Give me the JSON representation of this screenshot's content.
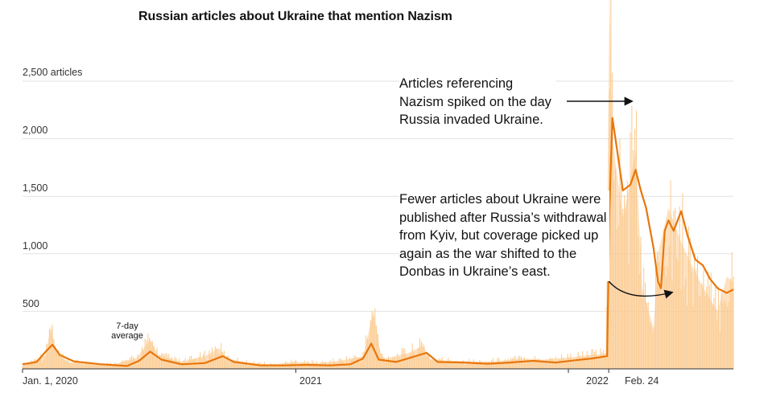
{
  "chart_data": {
    "type": "area",
    "title": "Russian articles about Ukraine that mention Nazism",
    "ylabel": "",
    "xlabel": "",
    "ylim": [
      0,
      3200
    ],
    "yticks": [
      {
        "value": 500,
        "label": "500"
      },
      {
        "value": 1000,
        "label": "1,000"
      },
      {
        "value": 1500,
        "label": "1,500"
      },
      {
        "value": 2000,
        "label": "2,000"
      },
      {
        "value": 2500,
        "label": "2,500 articles"
      }
    ],
    "xrange": [
      "2020-01-01",
      "2022-08-10"
    ],
    "xticks": [
      {
        "date": "2020-01-01",
        "label": "Jan. 1, 2020"
      },
      {
        "date": "2021-01-01",
        "label": "2021"
      },
      {
        "date": "2022-01-01",
        "label": "2022"
      },
      {
        "date": "2022-02-24",
        "label": "Feb. 24"
      }
    ],
    "series": [
      {
        "kind": "daily",
        "color": "#fbc98c",
        "points": [
          [
            "2020-01-01",
            40
          ],
          [
            "2020-01-15",
            70
          ],
          [
            "2020-02-01",
            120
          ],
          [
            "2020-02-08",
            380
          ],
          [
            "2020-02-15",
            140
          ],
          [
            "2020-03-01",
            60
          ],
          [
            "2020-04-01",
            50
          ],
          [
            "2020-05-01",
            40
          ],
          [
            "2020-06-01",
            90
          ],
          [
            "2020-06-20",
            250
          ],
          [
            "2020-07-01",
            120
          ],
          [
            "2020-08-01",
            60
          ],
          [
            "2020-09-01",
            110
          ],
          [
            "2020-09-20",
            180
          ],
          [
            "2020-10-01",
            90
          ],
          [
            "2020-11-01",
            50
          ],
          [
            "2020-12-01",
            40
          ],
          [
            "2021-01-01",
            60
          ],
          [
            "2021-02-01",
            50
          ],
          [
            "2021-03-01",
            70
          ],
          [
            "2021-04-01",
            110
          ],
          [
            "2021-04-15",
            500
          ],
          [
            "2021-04-25",
            120
          ],
          [
            "2021-05-01",
            90
          ],
          [
            "2021-06-01",
            140
          ],
          [
            "2021-06-20",
            200
          ],
          [
            "2021-07-01",
            80
          ],
          [
            "2021-08-01",
            70
          ],
          [
            "2021-09-01",
            60
          ],
          [
            "2021-10-01",
            70
          ],
          [
            "2021-11-01",
            90
          ],
          [
            "2021-12-01",
            80
          ],
          [
            "2022-01-01",
            100
          ],
          [
            "2022-02-01",
            120
          ],
          [
            "2022-02-20",
            130
          ],
          [
            "2022-02-24",
            2500
          ],
          [
            "2022-02-25",
            3300
          ],
          [
            "2022-03-01",
            2000
          ],
          [
            "2022-03-15",
            1300
          ],
          [
            "2022-04-01",
            1900
          ],
          [
            "2022-04-10",
            700
          ],
          [
            "2022-04-25",
            350
          ],
          [
            "2022-05-01",
            1000
          ],
          [
            "2022-05-15",
            1400
          ],
          [
            "2022-06-01",
            1100
          ],
          [
            "2022-06-15",
            900
          ],
          [
            "2022-07-01",
            700
          ],
          [
            "2022-07-20",
            500
          ],
          [
            "2022-08-01",
            800
          ],
          [
            "2022-08-10",
            750
          ]
        ]
      },
      {
        "kind": "7-day average",
        "color": "#e8760c",
        "points": [
          [
            "2020-01-01",
            40
          ],
          [
            "2020-01-20",
            60
          ],
          [
            "2020-02-01",
            150
          ],
          [
            "2020-02-10",
            210
          ],
          [
            "2020-02-20",
            120
          ],
          [
            "2020-03-10",
            65
          ],
          [
            "2020-04-15",
            40
          ],
          [
            "2020-05-20",
            25
          ],
          [
            "2020-06-05",
            70
          ],
          [
            "2020-06-20",
            150
          ],
          [
            "2020-07-05",
            80
          ],
          [
            "2020-08-01",
            40
          ],
          [
            "2020-09-01",
            50
          ],
          [
            "2020-09-25",
            110
          ],
          [
            "2020-10-10",
            60
          ],
          [
            "2020-11-15",
            30
          ],
          [
            "2020-12-15",
            30
          ],
          [
            "2021-01-15",
            35
          ],
          [
            "2021-02-15",
            30
          ],
          [
            "2021-03-15",
            40
          ],
          [
            "2021-04-01",
            90
          ],
          [
            "2021-04-12",
            220
          ],
          [
            "2021-04-22",
            80
          ],
          [
            "2021-05-15",
            60
          ],
          [
            "2021-06-05",
            100
          ],
          [
            "2021-06-25",
            140
          ],
          [
            "2021-07-10",
            60
          ],
          [
            "2021-08-15",
            55
          ],
          [
            "2021-09-15",
            45
          ],
          [
            "2021-10-15",
            55
          ],
          [
            "2021-11-15",
            70
          ],
          [
            "2021-12-15",
            55
          ],
          [
            "2022-01-10",
            75
          ],
          [
            "2022-02-01",
            90
          ],
          [
            "2022-02-22",
            110
          ],
          [
            "2022-02-25",
            1400
          ],
          [
            "2022-03-01",
            2180
          ],
          [
            "2022-03-05",
            2000
          ],
          [
            "2022-03-15",
            1550
          ],
          [
            "2022-03-25",
            1600
          ],
          [
            "2022-04-01",
            1730
          ],
          [
            "2022-04-08",
            1550
          ],
          [
            "2022-04-15",
            1400
          ],
          [
            "2022-04-25",
            1050
          ],
          [
            "2022-05-01",
            760
          ],
          [
            "2022-05-05",
            700
          ],
          [
            "2022-05-10",
            1200
          ],
          [
            "2022-05-15",
            1290
          ],
          [
            "2022-05-22",
            1200
          ],
          [
            "2022-06-01",
            1370
          ],
          [
            "2022-06-10",
            1150
          ],
          [
            "2022-06-20",
            950
          ],
          [
            "2022-06-30",
            900
          ],
          [
            "2022-07-10",
            780
          ],
          [
            "2022-07-20",
            700
          ],
          [
            "2022-08-01",
            660
          ],
          [
            "2022-08-10",
            690
          ]
        ]
      }
    ],
    "annotations": [
      {
        "text": "Articles referencing Nazism spiked on the day Russia invaded Ukraine.",
        "lines": [
          "Articles referencing",
          "Nazism spiked on the day",
          "Russia invaded Ukraine."
        ]
      },
      {
        "text": "Fewer articles about Ukraine were published after Russia’s withdrawal from Kyiv, but coverage picked up again as the war shifted to the Donbas in Ukraine’s east.",
        "lines": [
          "Fewer articles about Ukraine were",
          "published after Russia’s withdrawal",
          "from Kyiv, but coverage picked up",
          "again as the war shifted to the",
          "Donbas in Ukraine’s east."
        ]
      },
      {
        "text": "7-day average",
        "lines": [
          "7-day",
          "average"
        ]
      }
    ]
  }
}
